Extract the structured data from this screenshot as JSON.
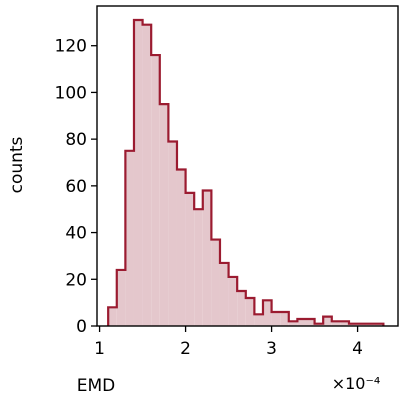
{
  "chart_data": {
    "type": "histogram",
    "title": "",
    "xlabel": "EMD",
    "ylabel": "counts",
    "x_scale_label": "×10⁻⁴",
    "x_unit_multiplier": 0.0001,
    "xlim": [
      0.97,
      4.47
    ],
    "ylim": [
      0,
      137
    ],
    "xticks": [
      1,
      2,
      3,
      4
    ],
    "yticks": [
      0,
      20,
      40,
      60,
      80,
      100,
      120
    ],
    "bins": [
      {
        "x0": 1.1,
        "x1": 1.2,
        "count": 8
      },
      {
        "x0": 1.2,
        "x1": 1.3,
        "count": 24
      },
      {
        "x0": 1.3,
        "x1": 1.4,
        "count": 75
      },
      {
        "x0": 1.4,
        "x1": 1.5,
        "count": 131
      },
      {
        "x0": 1.5,
        "x1": 1.6,
        "count": 129
      },
      {
        "x0": 1.6,
        "x1": 1.7,
        "count": 116
      },
      {
        "x0": 1.7,
        "x1": 1.8,
        "count": 95
      },
      {
        "x0": 1.8,
        "x1": 1.9,
        "count": 79
      },
      {
        "x0": 1.9,
        "x1": 2.0,
        "count": 67
      },
      {
        "x0": 2.0,
        "x1": 2.1,
        "count": 57
      },
      {
        "x0": 2.1,
        "x1": 2.2,
        "count": 50
      },
      {
        "x0": 2.2,
        "x1": 2.3,
        "count": 58
      },
      {
        "x0": 2.3,
        "x1": 2.4,
        "count": 37
      },
      {
        "x0": 2.4,
        "x1": 2.5,
        "count": 27
      },
      {
        "x0": 2.5,
        "x1": 2.6,
        "count": 21
      },
      {
        "x0": 2.6,
        "x1": 2.7,
        "count": 15
      },
      {
        "x0": 2.7,
        "x1": 2.8,
        "count": 12
      },
      {
        "x0": 2.8,
        "x1": 2.9,
        "count": 5
      },
      {
        "x0": 2.9,
        "x1": 3.0,
        "count": 11
      },
      {
        "x0": 3.0,
        "x1": 3.1,
        "count": 6
      },
      {
        "x0": 3.1,
        "x1": 3.2,
        "count": 6
      },
      {
        "x0": 3.2,
        "x1": 3.3,
        "count": 2
      },
      {
        "x0": 3.3,
        "x1": 3.4,
        "count": 3
      },
      {
        "x0": 3.4,
        "x1": 3.5,
        "count": 3
      },
      {
        "x0": 3.5,
        "x1": 3.6,
        "count": 1
      },
      {
        "x0": 3.6,
        "x1": 3.7,
        "count": 4
      },
      {
        "x0": 3.7,
        "x1": 3.8,
        "count": 2
      },
      {
        "x0": 3.8,
        "x1": 3.9,
        "count": 2
      },
      {
        "x0": 3.9,
        "x1": 4.0,
        "count": 1
      },
      {
        "x0": 4.0,
        "x1": 4.1,
        "count": 1
      },
      {
        "x0": 4.1,
        "x1": 4.2,
        "count": 1
      },
      {
        "x0": 4.2,
        "x1": 4.3,
        "count": 1
      }
    ],
    "colors": {
      "line": "#9b1b30",
      "fill": "#e4c7cc"
    },
    "grid": false,
    "legend": "none"
  }
}
